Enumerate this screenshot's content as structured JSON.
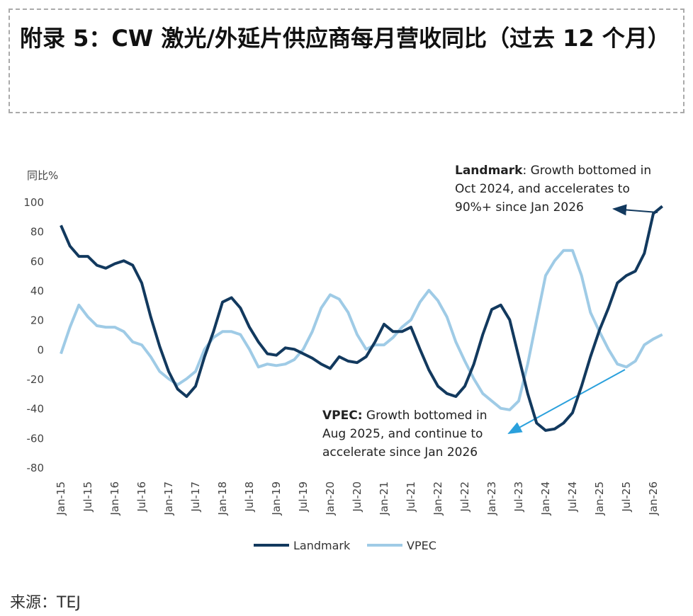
{
  "chart_data": {
    "type": "line",
    "title": "附录 5：CW 激光/外延片供应商每月营收同比（过去 12 个月）",
    "y_label": "同比%",
    "source": "来源：TEJ",
    "categories": [
      "Jan-15",
      null,
      null,
      "Jul-15",
      null,
      null,
      "Jan-16",
      null,
      null,
      "Jul-16",
      null,
      null,
      "Jan-17",
      null,
      null,
      "Jul-17",
      null,
      null,
      "Jan-18",
      null,
      null,
      "Jul-18",
      null,
      null,
      "Jan-19",
      null,
      null,
      "Jul-19",
      null,
      null,
      "Jan-20",
      null,
      null,
      "Jul-20",
      null,
      null,
      "Jan-21",
      null,
      null,
      "Jul-21",
      null,
      null,
      "Jan-22",
      null,
      null,
      "Jul-22",
      null,
      null,
      "Jan-23",
      null,
      null,
      "Jul-23",
      null,
      null,
      "Jan-24",
      null,
      null,
      "Jul-24",
      null,
      null,
      "Jan-25",
      null,
      null,
      "Jul-25",
      null,
      null,
      "Jan-26",
      null
    ],
    "series": [
      {
        "name": "Landmark",
        "color": "#12395e",
        "values": [
          84,
          70,
          63,
          63,
          57,
          55,
          58,
          60,
          57,
          45,
          22,
          2,
          -15,
          -27,
          -32,
          -25,
          -5,
          12,
          32,
          35,
          28,
          15,
          5,
          -3,
          -4,
          1,
          0,
          -3,
          -6,
          -10,
          -13,
          -5,
          -8,
          -9,
          -5,
          5,
          17,
          12,
          12,
          15,
          0,
          -14,
          -25,
          -30,
          -32,
          -25,
          -10,
          10,
          27,
          30,
          20,
          -5,
          -30,
          -50,
          -55,
          -54,
          -50,
          -43,
          -25,
          -5,
          13,
          28,
          45,
          50,
          53,
          65,
          92,
          97
        ]
      },
      {
        "name": "VPEC",
        "color": "#9fcbe6",
        "values": [
          -3,
          15,
          30,
          22,
          16,
          15,
          15,
          12,
          5,
          3,
          -5,
          -15,
          -20,
          -24,
          -20,
          -15,
          0,
          8,
          12,
          12,
          10,
          0,
          -12,
          -10,
          -11,
          -10,
          -7,
          0,
          12,
          28,
          37,
          34,
          25,
          10,
          0,
          3,
          3,
          8,
          15,
          20,
          32,
          40,
          33,
          22,
          5,
          -8,
          -20,
          -30,
          -35,
          -40,
          -41,
          -35,
          -10,
          20,
          50,
          60,
          67,
          67,
          50,
          25,
          12,
          0,
          -10,
          -12,
          -8,
          3,
          7,
          10
        ]
      }
    ],
    "ylim": [
      -80,
      100
    ],
    "yticks": [
      -80,
      -60,
      -40,
      -20,
      0,
      20,
      40,
      60,
      80,
      100
    ],
    "grid": false,
    "annotations": [
      {
        "label": "Landmark",
        "lines": [
          ": Growth bottomed in",
          "Oct 2024, and accelerates to",
          "90%+ since Jan 2026"
        ]
      },
      {
        "label": "VPEC:",
        "lines": [
          " Growth bottomed in",
          "Aug 2025, and continue to",
          "accelerate since Jan 2026"
        ]
      }
    ]
  }
}
